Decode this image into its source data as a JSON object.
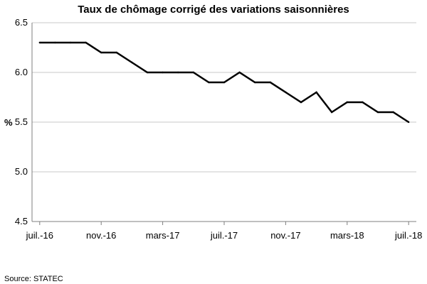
{
  "chart_data": {
    "type": "line",
    "title": "Taux de chômage corrigé des variations saisonnières",
    "ylabel": "%",
    "xlabel": "",
    "ylim": [
      4.5,
      6.5
    ],
    "yticks": [
      4.5,
      5.0,
      5.5,
      6.0,
      6.5
    ],
    "ytick_labels": [
      "4.5",
      "5.0",
      "5.5",
      "6.0",
      "6.5"
    ],
    "xtick_labels": [
      "juil.-16",
      "nov.-16",
      "mars-17",
      "juil.-17",
      "nov.-17",
      "mars-18",
      "juil.-18"
    ],
    "xtick_positions": [
      "2016-07",
      "2016-11",
      "2017-03",
      "2017-07",
      "2017-11",
      "2018-03",
      "2018-07"
    ],
    "x_range": [
      "2016-06",
      "2018-07"
    ],
    "grid": true,
    "legend": "none",
    "series": [
      {
        "color": "#000000",
        "x": [
          "2016-07",
          "2016-08",
          "2016-09",
          "2016-10",
          "2016-11",
          "2016-12",
          "2017-01",
          "2017-02",
          "2017-03",
          "2017-04",
          "2017-05",
          "2017-06",
          "2017-07",
          "2017-08",
          "2017-09",
          "2017-10",
          "2017-11",
          "2017-12",
          "2018-01",
          "2018-02",
          "2018-03",
          "2018-04",
          "2018-05",
          "2018-06",
          "2018-07"
        ],
        "values": [
          6.3,
          6.3,
          6.3,
          6.3,
          6.2,
          6.2,
          6.1,
          6.0,
          6.0,
          6.0,
          6.0,
          5.9,
          5.9,
          6.0,
          5.9,
          5.9,
          5.8,
          5.7,
          5.8,
          5.6,
          5.7,
          5.7,
          5.6,
          5.6,
          5.5
        ]
      }
    ]
  },
  "footer": {
    "source": "Source: STATEC"
  }
}
